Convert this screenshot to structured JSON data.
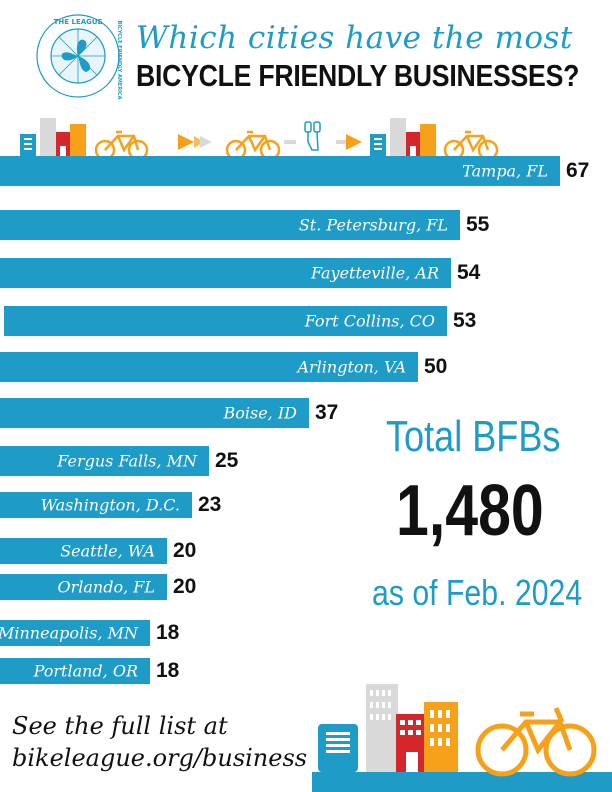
{
  "header": {
    "logo_text_top": "THE LEAGUE",
    "logo_text_side": "BICYCLE FRIENDLY AMERICA",
    "title_line1": "Which cities have the most",
    "title_line2": "BICYCLE FRIENDLY BUSINESSES?"
  },
  "colors": {
    "accent": "#1e9bc6",
    "text": "#111111",
    "orange": "#f7a11a",
    "red": "#d5262b"
  },
  "chart_data": {
    "type": "bar",
    "orientation": "horizontal",
    "categories": [
      "Tampa, FL",
      "St. Petersburg, FL",
      "Fayetteville, AR",
      "Fort Collins, CO",
      "Arlington, VA",
      "Boise, ID",
      "Fergus Falls, MN",
      "Washington, D.C.",
      "Seattle, WA",
      "Orlando, FL",
      "Minneapolis, MN",
      "Portland, OR"
    ],
    "values": [
      67,
      55,
      54,
      53,
      50,
      37,
      25,
      23,
      20,
      20,
      18,
      18
    ],
    "title": "Which cities have the most BICYCLE FRIENDLY BUSINESSES?",
    "xlabel": "",
    "ylabel": "",
    "grid": false,
    "data_labels": true
  },
  "summary": {
    "total_label": "Total BFBs",
    "total_value": "1,480",
    "as_of": "as of Feb. 2024"
  },
  "footer": {
    "line1": "See the full list at",
    "line2": "bikeleague.org/business"
  }
}
